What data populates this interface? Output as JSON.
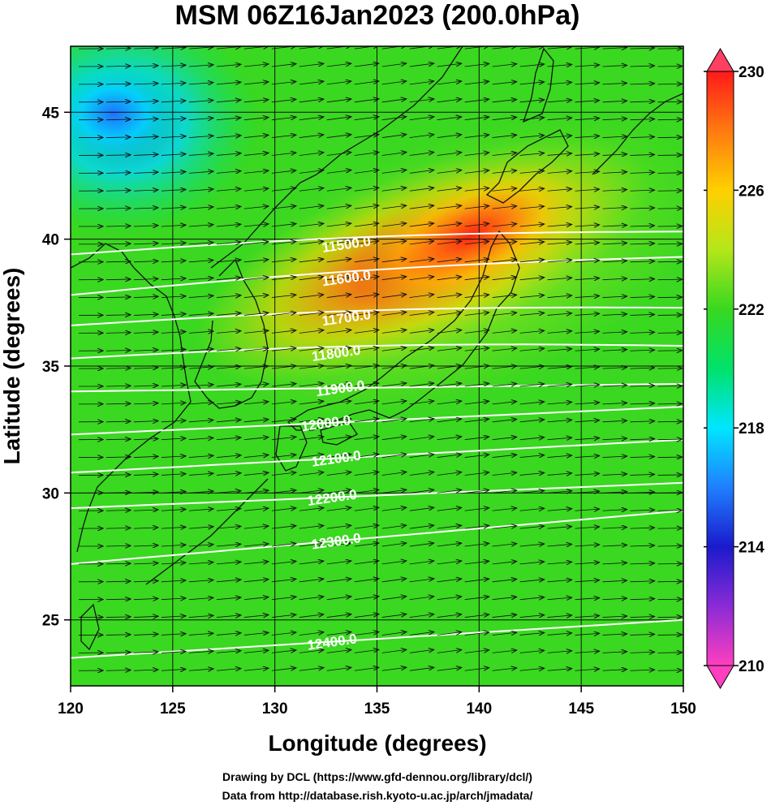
{
  "chart_data": {
    "type": "heatmap",
    "title": "MSM 06Z16Jan2023 (200.0hPa)",
    "xlabel": "Longitude (degrees)",
    "ylabel": "Latitude  (degrees)",
    "xlim": [
      120,
      150
    ],
    "ylim": [
      22.4,
      47.6
    ],
    "x_ticks": [
      120,
      125,
      130,
      135,
      140,
      145,
      150
    ],
    "y_ticks": [
      25,
      30,
      35,
      40,
      45
    ],
    "colorbar": {
      "min": 210,
      "max": 230,
      "ticks": [
        210,
        214,
        218,
        222,
        226,
        230
      ],
      "colors": [
        "#ff3fbf",
        "#8a2bd6",
        "#1a1acc",
        "#1f7fff",
        "#00e6ff",
        "#00e26a",
        "#38d820",
        "#b4e61a",
        "#ffd000",
        "#ff7a10",
        "#ff1a1a"
      ]
    },
    "contours": [
      {
        "label": "11500.0",
        "y_at_left": 39.4,
        "y_at_right": 40.3
      },
      {
        "label": "11600.0",
        "y_at_left": 37.8,
        "y_at_right": 39.3
      },
      {
        "label": "11700.0",
        "y_at_left": 36.6,
        "y_at_right": 37.3
      },
      {
        "label": "11800.0",
        "y_at_left": 35.3,
        "y_at_right": 35.8
      },
      {
        "label": "11900.0",
        "y_at_left": 34.0,
        "y_at_right": 34.3
      },
      {
        "label": "12000.0",
        "y_at_left": 32.3,
        "y_at_right": 33.4
      },
      {
        "label": "12100.0",
        "y_at_left": 30.8,
        "y_at_right": 32.1
      },
      {
        "label": "12200.0",
        "y_at_left": 29.4,
        "y_at_right": 30.4
      },
      {
        "label": "12300.0",
        "y_at_left": 27.2,
        "y_at_right": 29.3
      },
      {
        "label": "12400.0",
        "y_at_left": 23.5,
        "y_at_right": 25.0
      }
    ],
    "temperature_field": {
      "background": 222,
      "max_center": {
        "lon": 139.5,
        "lat": 40.5,
        "value": 229
      },
      "min_region": {
        "lon": 123,
        "lat": 45.5,
        "value": 217
      }
    },
    "wind": "westerly"
  },
  "credits": {
    "line1": "Drawing by DCL (https://www.gfd-dennou.org/library/dcl/)",
    "line2": "Data from http://database.rish.kyoto-u.ac.jp/arch/jmadata/"
  }
}
